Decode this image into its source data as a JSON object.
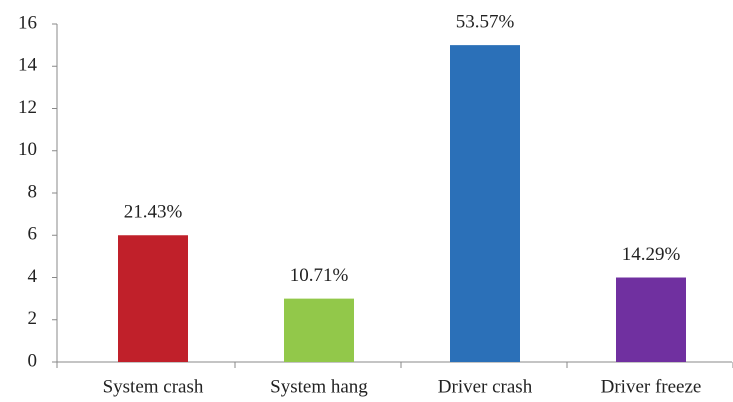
{
  "chart_data": {
    "type": "bar",
    "categories": [
      "System crash",
      "System hang",
      "Driver crash",
      "Driver freeze"
    ],
    "values": [
      6,
      3,
      15,
      4
    ],
    "annotations": [
      "21.43%",
      "10.71%",
      "53.57%",
      "14.29%"
    ],
    "colors": [
      "#c0202a",
      "#92c84a",
      "#2b70b8",
      "#7030a0"
    ],
    "ylim": [
      0,
      16
    ],
    "yticks": [
      0,
      2,
      4,
      6,
      8,
      10,
      12,
      14,
      16
    ],
    "grid": false
  }
}
